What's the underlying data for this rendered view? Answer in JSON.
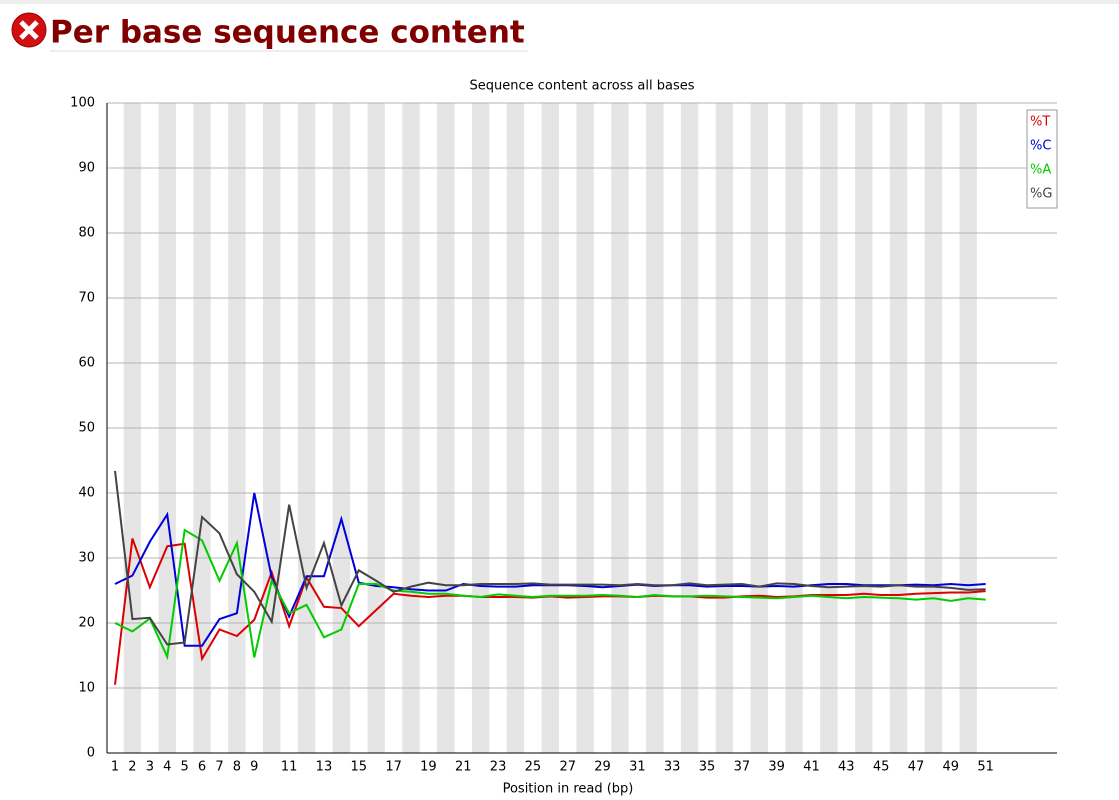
{
  "header": {
    "title": "Per base sequence content"
  },
  "chart_data": {
    "type": "line",
    "title": "Sequence content across all bases",
    "x_label": "Position in read (bp)",
    "x": [
      1,
      2,
      3,
      4,
      5,
      6,
      7,
      8,
      9,
      10,
      11,
      12,
      13,
      14,
      15,
      16,
      17,
      18,
      19,
      20,
      21,
      22,
      23,
      24,
      25,
      26,
      27,
      28,
      29,
      30,
      31,
      32,
      33,
      34,
      35,
      36,
      37,
      38,
      39,
      40,
      41,
      42,
      43,
      44,
      45,
      46,
      47,
      48,
      49,
      50,
      51
    ],
    "xlim": [
      0.54,
      55.1
    ],
    "xticks": [
      1,
      2,
      3,
      4,
      5,
      6,
      7,
      8,
      9,
      11,
      13,
      15,
      17,
      19,
      21,
      23,
      25,
      27,
      29,
      31,
      33,
      35,
      37,
      39,
      41,
      43,
      45,
      47,
      49,
      51
    ],
    "ylim": [
      0,
      100
    ],
    "yticks": [
      0,
      10,
      20,
      30,
      40,
      50,
      60,
      70,
      80,
      90,
      100
    ],
    "grid": true,
    "legend": "top-right",
    "series": [
      {
        "name": "%T",
        "color": "#dd0000",
        "values": [
          10.5,
          33,
          25.5,
          31.8,
          32.2,
          14.5,
          19,
          18,
          20.5,
          27.8,
          19.5,
          27,
          22.5,
          22.3,
          19.5,
          22,
          24.5,
          24.2,
          24,
          24.2,
          24.2,
          24,
          24,
          24,
          23.9,
          24.1,
          23.9,
          24,
          24.1,
          24.1,
          24,
          24.2,
          24.1,
          24.1,
          23.9,
          23.9,
          24.1,
          24.2,
          24,
          24.1,
          24.3,
          24.3,
          24.3,
          24.5,
          24.3,
          24.3,
          24.5,
          24.6,
          24.7,
          24.7,
          24.9
        ]
      },
      {
        "name": "%C",
        "color": "#0000dd",
        "values": [
          26,
          27.3,
          32.5,
          36.7,
          16.5,
          16.5,
          20.6,
          21.5,
          40,
          27,
          21,
          27.2,
          27.2,
          36,
          26.2,
          25.7,
          25.5,
          25.2,
          25,
          25,
          26,
          25.7,
          25.6,
          25.6,
          25.8,
          25.8,
          25.8,
          25.7,
          25.5,
          25.7,
          25.9,
          25.7,
          25.8,
          25.8,
          25.6,
          25.7,
          25.7,
          25.6,
          25.7,
          25.6,
          25.8,
          26,
          26,
          25.8,
          25.8,
          25.8,
          25.9,
          25.8,
          26,
          25.8,
          26
        ]
      },
      {
        "name": "%A",
        "color": "#00cc00",
        "values": [
          20,
          18.7,
          20.7,
          14.8,
          34.3,
          32.7,
          26.5,
          32.3,
          14.7,
          26.5,
          21.5,
          22.8,
          17.8,
          19,
          26,
          26,
          25,
          24.8,
          24.5,
          24.5,
          24.2,
          24,
          24.4,
          24.2,
          24,
          24.2,
          24.2,
          24.2,
          24.3,
          24.2,
          24,
          24.3,
          24.1,
          24.1,
          24.2,
          24.1,
          24,
          23.9,
          23.8,
          24,
          24.2,
          24,
          23.8,
          24,
          23.9,
          23.8,
          23.6,
          23.8,
          23.4,
          23.8,
          23.6
        ]
      },
      {
        "name": "%G",
        "color": "#444444",
        "values": [
          43.4,
          20.6,
          20.8,
          16.7,
          17,
          36.3,
          33.8,
          27.5,
          24.8,
          20.2,
          38.2,
          25.4,
          32.3,
          22.7,
          28.1,
          26.5,
          24.8,
          25.6,
          26.2,
          25.8,
          25.8,
          26,
          26,
          26,
          26.1,
          25.9,
          25.9,
          25.9,
          25.9,
          25.8,
          26,
          25.8,
          25.8,
          26.1,
          25.8,
          25.9,
          26,
          25.6,
          26.1,
          26,
          25.7,
          25.5,
          25.6,
          25.7,
          25.6,
          25.8,
          25.6,
          25.6,
          25.4,
          25.1,
          25.2
        ]
      }
    ]
  }
}
